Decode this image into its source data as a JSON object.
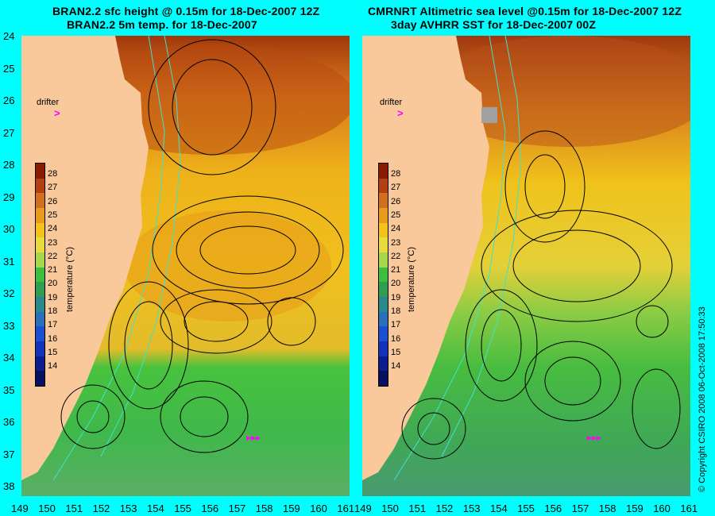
{
  "left_panel": {
    "title_line1": "BRAN2.2 sfc height @ 0.15m for 18-Dec-2007 12Z",
    "title_line2": "BRAN2.2 5m temp. for 18-Dec-2007"
  },
  "right_panel": {
    "title_line1": "CMRNRT Altimetric sea level  @0.15m  for 18-Dec-2007 12Z",
    "title_line2": "3day AVHRR SST for 18-Dec-2007 00Z"
  },
  "drifter_label": "drifter",
  "drifter_marker": ">",
  "colorbar": {
    "title": "temperature (°C)",
    "ticks": [
      "28",
      "27",
      "26",
      "25",
      "24",
      "23",
      "22",
      "21",
      "20",
      "19",
      "18",
      "17",
      "16",
      "15",
      "14"
    ],
    "colors": [
      "#8b1a00",
      "#b34010",
      "#d0701c",
      "#e89a1a",
      "#f3c21a",
      "#e8dc3a",
      "#a6d84a",
      "#3cbf3c",
      "#2f9e4e",
      "#2a8a8a",
      "#2a70b8",
      "#1a4fd0",
      "#1232b8",
      "#0c1e8f",
      "#081060"
    ]
  },
  "latitudes": [
    "24",
    "25",
    "26",
    "27",
    "28",
    "29",
    "30",
    "31",
    "32",
    "33",
    "34",
    "35",
    "36",
    "37",
    "38"
  ],
  "longitudes": [
    "149",
    "150",
    "151",
    "152",
    "153",
    "154",
    "155",
    "156",
    "157",
    "158",
    "159",
    "160",
    "161"
  ],
  "copyright": "© Copyright CSIRO 2008   06-Oct-2008 17:50:33",
  "colors": {
    "background": "#00ffff",
    "land": "#f9c89b",
    "contour": "#000000",
    "bathymetry": "#40e0d0",
    "drifter": "#ff00ff"
  }
}
